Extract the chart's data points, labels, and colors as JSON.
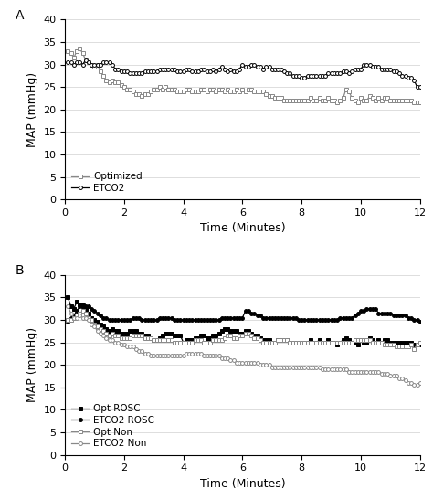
{
  "panel_a": {
    "optimized_y": [
      33.0,
      32.5,
      31.5,
      33.0,
      33.5,
      32.5,
      31.0,
      30.5,
      30.0,
      29.5,
      30.0,
      28.5,
      27.5,
      26.5,
      26.0,
      26.5,
      26.0,
      26.0,
      25.5,
      25.0,
      24.5,
      24.5,
      24.0,
      23.5,
      23.5,
      23.0,
      23.5,
      23.5,
      24.0,
      24.5,
      24.5,
      25.0,
      24.5,
      25.0,
      24.5,
      24.5,
      24.5,
      24.0,
      24.0,
      24.0,
      24.5,
      24.5,
      24.0,
      24.0,
      24.0,
      24.5,
      24.5,
      24.0,
      24.5,
      24.5,
      24.0,
      24.5,
      24.5,
      24.0,
      24.5,
      24.0,
      24.0,
      24.5,
      24.0,
      24.5,
      24.0,
      24.5,
      24.5,
      24.0,
      24.0,
      24.0,
      24.0,
      23.5,
      23.0,
      23.0,
      22.5,
      22.5,
      22.5,
      22.0,
      22.0,
      22.0,
      22.0,
      22.0,
      22.0,
      22.0,
      22.0,
      22.0,
      22.5,
      22.0,
      22.0,
      22.5,
      22.0,
      22.0,
      22.5,
      22.0,
      22.0,
      21.5,
      22.0,
      22.5,
      24.5,
      24.0,
      22.5,
      22.0,
      21.5,
      22.5,
      22.0,
      22.0,
      23.0,
      22.5,
      22.0,
      22.5,
      22.0,
      22.5,
      22.5,
      22.0,
      22.0,
      22.0,
      22.0,
      22.0,
      22.0,
      22.0,
      22.0,
      21.5,
      21.5,
      21.5
    ],
    "etco2_y": [
      30.5,
      30.5,
      30.0,
      30.5,
      30.5,
      30.0,
      31.0,
      30.5,
      30.0,
      30.0,
      30.0,
      30.0,
      30.5,
      30.5,
      30.5,
      30.0,
      29.0,
      29.0,
      28.5,
      28.5,
      28.5,
      28.0,
      28.0,
      28.0,
      28.0,
      28.0,
      28.5,
      28.5,
      28.5,
      28.5,
      28.5,
      29.0,
      29.0,
      29.0,
      29.0,
      29.0,
      29.0,
      28.5,
      28.5,
      28.5,
      29.0,
      29.0,
      28.5,
      28.5,
      28.5,
      29.0,
      29.0,
      28.5,
      28.5,
      29.0,
      28.5,
      29.0,
      29.5,
      29.0,
      28.5,
      29.0,
      28.5,
      28.5,
      29.0,
      30.0,
      29.5,
      29.5,
      30.0,
      30.0,
      29.5,
      29.5,
      29.0,
      29.5,
      29.5,
      29.0,
      29.0,
      29.0,
      29.0,
      28.5,
      28.0,
      28.0,
      27.5,
      27.5,
      27.5,
      27.0,
      27.0,
      27.5,
      27.5,
      27.5,
      27.5,
      27.5,
      27.5,
      27.5,
      28.0,
      28.0,
      28.0,
      28.0,
      28.0,
      28.5,
      28.5,
      28.0,
      28.5,
      29.0,
      29.0,
      29.0,
      30.0,
      30.0,
      30.0,
      29.5,
      29.5,
      29.5,
      29.0,
      29.0,
      29.0,
      29.0,
      28.5,
      28.5,
      28.0,
      27.5,
      27.5,
      27.0,
      27.0,
      26.5,
      25.0,
      25.0
    ]
  },
  "panel_b": {
    "opt_rosc_y": [
      35.0,
      33.0,
      32.5,
      34.0,
      33.5,
      33.0,
      32.5,
      31.5,
      30.5,
      30.0,
      29.5,
      29.0,
      28.5,
      28.0,
      27.5,
      28.0,
      27.5,
      27.5,
      27.0,
      27.0,
      27.0,
      27.5,
      27.5,
      27.5,
      27.0,
      27.0,
      26.5,
      26.5,
      26.0,
      25.5,
      25.5,
      26.0,
      26.5,
      27.0,
      27.0,
      27.0,
      26.5,
      26.5,
      26.5,
      25.0,
      25.5,
      25.5,
      25.5,
      26.0,
      26.0,
      26.5,
      26.5,
      26.0,
      26.0,
      26.5,
      26.5,
      27.0,
      27.5,
      28.0,
      28.0,
      27.5,
      27.5,
      27.5,
      27.0,
      27.0,
      27.5,
      27.5,
      27.0,
      26.5,
      26.5,
      26.0,
      25.5,
      25.5,
      25.5,
      25.0,
      25.0,
      25.5,
      25.5,
      25.5,
      25.5,
      25.0,
      25.0,
      25.0,
      25.0,
      25.0,
      25.0,
      25.0,
      25.5,
      25.0,
      25.0,
      25.5,
      25.0,
      25.0,
      25.5,
      25.0,
      25.0,
      24.5,
      25.0,
      25.5,
      26.0,
      25.5,
      25.0,
      25.0,
      24.5,
      25.5,
      25.0,
      25.0,
      26.0,
      25.5,
      25.0,
      25.5,
      25.0,
      25.5,
      25.5,
      25.0,
      25.0,
      25.0,
      25.0,
      25.0,
      25.0,
      25.0,
      25.0,
      24.5,
      24.5,
      24.5
    ],
    "etco2_rosc_y": [
      29.5,
      30.5,
      31.0,
      32.0,
      33.0,
      33.5,
      33.0,
      33.0,
      32.5,
      32.0,
      31.5,
      31.0,
      30.5,
      30.5,
      30.0,
      30.0,
      30.0,
      30.0,
      30.0,
      30.0,
      30.0,
      30.0,
      30.5,
      30.5,
      30.5,
      30.0,
      30.0,
      30.0,
      30.0,
      30.0,
      30.0,
      30.5,
      30.5,
      30.5,
      30.5,
      30.5,
      30.0,
      30.0,
      30.0,
      30.0,
      30.0,
      30.0,
      30.0,
      30.0,
      30.0,
      30.0,
      30.0,
      30.0,
      30.0,
      30.0,
      30.0,
      30.0,
      30.5,
      30.5,
      30.5,
      30.5,
      30.5,
      30.5,
      30.5,
      30.5,
      32.0,
      32.0,
      31.5,
      31.5,
      31.0,
      31.0,
      30.5,
      30.5,
      30.5,
      30.5,
      30.5,
      30.5,
      30.5,
      30.5,
      30.5,
      30.5,
      30.5,
      30.5,
      30.0,
      30.0,
      30.0,
      30.0,
      30.0,
      30.0,
      30.0,
      30.0,
      30.0,
      30.0,
      30.0,
      30.0,
      30.0,
      30.0,
      30.5,
      30.5,
      30.5,
      30.5,
      30.5,
      31.0,
      31.5,
      32.0,
      32.0,
      32.5,
      32.5,
      32.5,
      32.5,
      31.5,
      31.5,
      31.5,
      31.5,
      31.5,
      31.0,
      31.0,
      31.0,
      31.0,
      31.0,
      30.5,
      30.5,
      30.0,
      30.0,
      29.5
    ],
    "opt_non_y": [
      30.0,
      30.0,
      30.5,
      31.0,
      31.5,
      32.0,
      31.5,
      30.5,
      30.0,
      29.0,
      28.5,
      28.0,
      27.5,
      27.0,
      26.5,
      27.0,
      26.5,
      26.5,
      26.0,
      26.0,
      26.0,
      26.0,
      26.5,
      26.5,
      26.5,
      26.5,
      26.0,
      26.0,
      26.0,
      25.5,
      25.5,
      25.5,
      25.5,
      25.5,
      25.5,
      25.5,
      25.0,
      25.0,
      25.0,
      25.0,
      25.0,
      25.0,
      25.0,
      25.5,
      25.5,
      25.5,
      25.0,
      25.0,
      25.0,
      25.5,
      25.5,
      25.5,
      25.5,
      26.0,
      26.5,
      26.5,
      26.0,
      26.0,
      26.5,
      26.5,
      27.0,
      27.0,
      26.5,
      26.0,
      26.0,
      25.5,
      25.0,
      25.0,
      25.0,
      25.0,
      25.0,
      25.5,
      25.5,
      25.5,
      25.5,
      25.0,
      25.0,
      25.0,
      25.0,
      25.0,
      25.0,
      25.0,
      25.0,
      25.0,
      25.0,
      25.0,
      25.0,
      25.0,
      25.0,
      25.0,
      25.0,
      25.0,
      25.0,
      25.0,
      25.0,
      25.0,
      25.0,
      25.5,
      25.5,
      25.5,
      25.5,
      25.5,
      25.5,
      25.0,
      25.0,
      25.0,
      25.0,
      24.5,
      24.5,
      24.5,
      24.5,
      24.0,
      24.0,
      24.0,
      24.0,
      24.0,
      24.5,
      23.5,
      24.5,
      25.0
    ],
    "etco2_non_y": [
      33.0,
      31.5,
      30.5,
      30.5,
      31.0,
      30.5,
      30.5,
      30.0,
      29.0,
      28.5,
      27.5,
      27.0,
      26.5,
      26.0,
      25.5,
      25.5,
      25.0,
      25.0,
      24.5,
      24.5,
      24.0,
      24.0,
      24.0,
      23.5,
      23.0,
      23.0,
      22.5,
      22.5,
      22.0,
      22.0,
      22.0,
      22.0,
      22.0,
      22.0,
      22.0,
      22.0,
      22.0,
      22.0,
      22.0,
      22.0,
      22.5,
      22.5,
      22.5,
      22.5,
      22.5,
      22.5,
      22.0,
      22.0,
      22.0,
      22.0,
      22.0,
      22.0,
      21.5,
      21.5,
      21.5,
      21.0,
      21.0,
      20.5,
      20.5,
      20.5,
      20.5,
      20.5,
      20.5,
      20.5,
      20.5,
      20.0,
      20.0,
      20.0,
      20.0,
      19.5,
      19.5,
      19.5,
      19.5,
      19.5,
      19.5,
      19.5,
      19.5,
      19.5,
      19.5,
      19.5,
      19.5,
      19.5,
      19.5,
      19.5,
      19.5,
      19.5,
      19.0,
      19.0,
      19.0,
      19.0,
      19.0,
      19.0,
      19.0,
      19.0,
      19.0,
      18.5,
      18.5,
      18.5,
      18.5,
      18.5,
      18.5,
      18.5,
      18.5,
      18.5,
      18.5,
      18.5,
      18.0,
      18.0,
      18.0,
      17.5,
      17.5,
      17.5,
      17.0,
      17.0,
      16.5,
      16.0,
      16.0,
      15.5,
      15.5,
      16.0
    ]
  },
  "xlabel": "Time (Minutes)",
  "ylabel": "MAP (mmHg)",
  "ylim": [
    0,
    40
  ],
  "xlim": [
    0,
    12
  ],
  "xticks": [
    0,
    2,
    4,
    6,
    8,
    10,
    12
  ],
  "yticks": [
    0,
    5,
    10,
    15,
    20,
    25,
    30,
    35,
    40
  ],
  "panel_a_label": "A",
  "panel_b_label": "B",
  "legend_a": [
    "Optimized",
    "ETCO2"
  ],
  "legend_b": [
    "Opt ROSC",
    "ETCO2 ROSC",
    "Opt Non",
    "ETCO2 Non"
  ],
  "line_color_gray": "#888888",
  "line_color_black": "#000000",
  "marker_square": "s",
  "marker_circle": "o",
  "marker_size": 2.8,
  "line_width": 0.9,
  "grid_color": "#d0d0d0",
  "background_color": "#ffffff",
  "font_size_axis": 9,
  "font_size_tick": 8,
  "font_size_panel": 10,
  "font_size_legend": 7.5
}
